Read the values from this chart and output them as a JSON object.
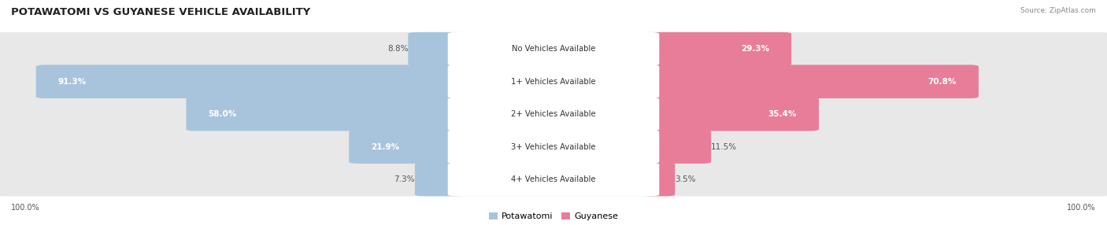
{
  "title": "POTAWATOMI VS GUYANESE VEHICLE AVAILABILITY",
  "source": "Source: ZipAtlas.com",
  "categories": [
    "No Vehicles Available",
    "1+ Vehicles Available",
    "2+ Vehicles Available",
    "3+ Vehicles Available",
    "4+ Vehicles Available"
  ],
  "potawatomi_values": [
    8.8,
    91.3,
    58.0,
    21.9,
    7.3
  ],
  "guyanese_values": [
    29.3,
    70.8,
    35.4,
    11.5,
    3.5
  ],
  "potawatomi_color": "#a8c4dc",
  "guyanese_color": "#e87d9a",
  "row_bg_color": "#e8e8e8",
  "footer_label": "100.0%",
  "legend_potawatomi": "Potawatomi",
  "legend_guyanese": "Guyanese",
  "max_value": 100.0,
  "fig_bg": "#ffffff"
}
